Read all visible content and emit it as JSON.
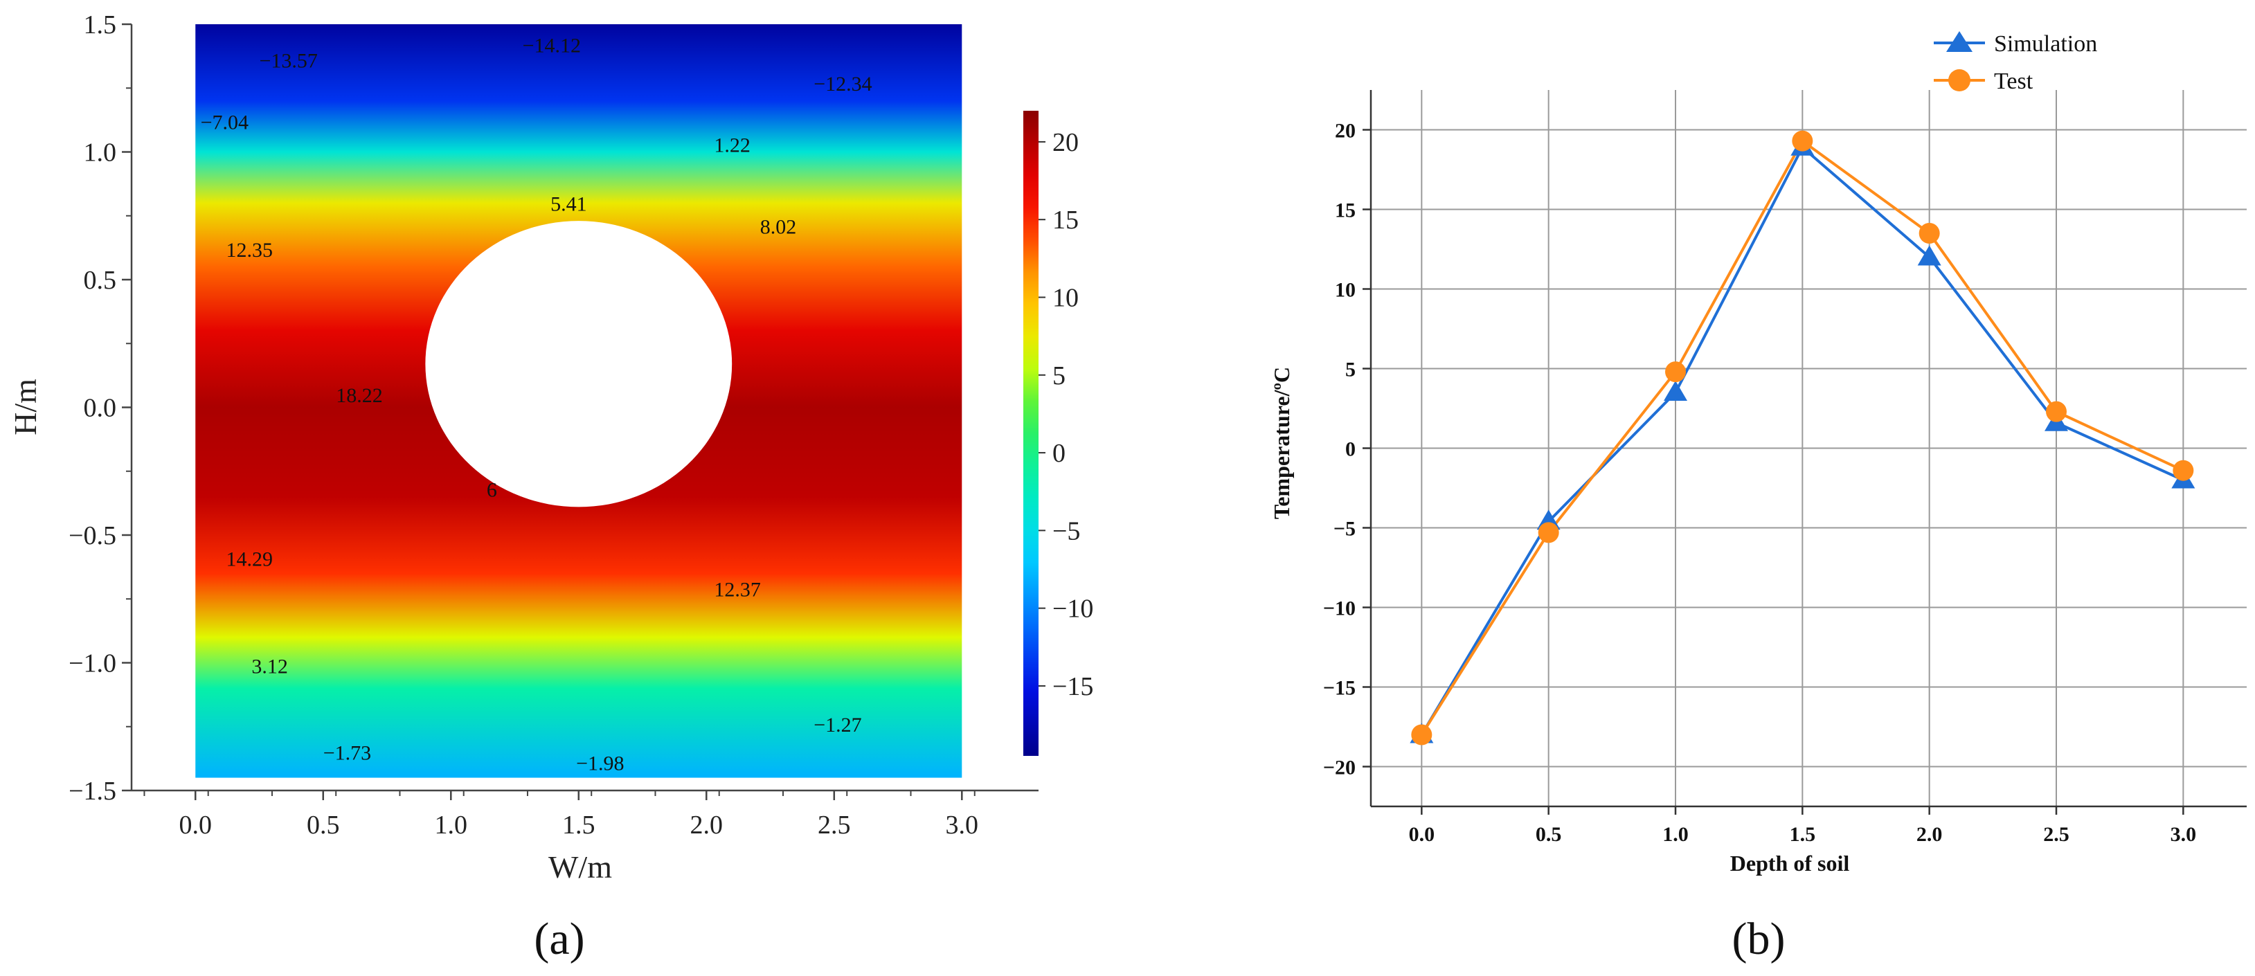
{
  "chart_data": [
    {
      "type": "heatmap",
      "panel_label": "(a)",
      "xlabel": "W/m",
      "ylabel": "H/m",
      "xlim": [
        -0.25,
        3.3
      ],
      "ylim": [
        -1.5,
        1.5
      ],
      "field_extent": {
        "x": [
          0.0,
          3.0
        ],
        "y": [
          -1.45,
          1.5
        ]
      },
      "x_ticks": [
        "0.0",
        "0.5",
        "1.0",
        "1.5",
        "2.0",
        "2.5",
        "3.0"
      ],
      "x_tick_values": [
        0,
        0.5,
        1.0,
        1.5,
        2.0,
        2.5,
        3.0
      ],
      "y_ticks": [
        "1.5",
        "1.0",
        "0.5",
        "0.0",
        "−0.5",
        "−1.0",
        "−1.5"
      ],
      "y_tick_values": [
        1.5,
        1.0,
        0.5,
        0.0,
        -0.5,
        -1.0,
        -1.5
      ],
      "colorbar": {
        "range": [
          -19.5,
          22
        ],
        "ticks": [
          "20",
          "15",
          "10",
          "5",
          "0",
          "−5",
          "−10",
          "−15"
        ],
        "tick_values": [
          20,
          15,
          10,
          5,
          0,
          -5,
          -10,
          -15
        ]
      },
      "hole": {
        "cx": 1.5,
        "cy": 0.17,
        "rx": 0.6,
        "ry": 0.56
      },
      "temperature_profile": {
        "y": [
          1.5,
          1.2,
          1.0,
          0.8,
          0.55,
          0.3,
          0.0,
          -0.35,
          -0.65,
          -0.9,
          -1.1,
          -1.45
        ],
        "t": [
          -18.5,
          -13.5,
          -4.0,
          7.5,
          13.0,
          17.5,
          20.5,
          19.5,
          14.5,
          6.5,
          -1.5,
          -8.0
        ]
      },
      "colormap": [
        {
          "t": -19.5,
          "color": "#00008b"
        },
        {
          "t": -15.0,
          "color": "#0010e8"
        },
        {
          "t": -10.5,
          "color": "#007cff"
        },
        {
          "t": -6.5,
          "color": "#00d4ff"
        },
        {
          "t": -2.0,
          "color": "#00f0b4"
        },
        {
          "t": 2.5,
          "color": "#3af04a"
        },
        {
          "t": 6.0,
          "color": "#d8ff00"
        },
        {
          "t": 9.0,
          "color": "#ffd200"
        },
        {
          "t": 12.0,
          "color": "#ff8a00"
        },
        {
          "t": 15.0,
          "color": "#ff1e00"
        },
        {
          "t": 18.0,
          "color": "#e00000"
        },
        {
          "t": 22.0,
          "color": "#8b0000"
        }
      ],
      "contour_labels": [
        {
          "text": "−13.57",
          "x": 0.25,
          "y": 1.33
        },
        {
          "text": "−14.12",
          "x": 1.28,
          "y": 1.39
        },
        {
          "text": "−12.34",
          "x": 2.42,
          "y": 1.24
        },
        {
          "text": "−7.04",
          "x": 0.02,
          "y": 1.09
        },
        {
          "text": "1.22",
          "x": 2.03,
          "y": 1.0
        },
        {
          "text": "5.41",
          "x": 1.39,
          "y": 0.77
        },
        {
          "text": "8.02",
          "x": 2.21,
          "y": 0.68
        },
        {
          "text": "12.35",
          "x": 0.12,
          "y": 0.59
        },
        {
          "text": "18.22",
          "x": 0.55,
          "y": 0.02
        },
        {
          "text": "6",
          "x": 1.14,
          "y": -0.35
        },
        {
          "text": "14.29",
          "x": 0.12,
          "y": -0.62
        },
        {
          "text": "12.37",
          "x": 2.03,
          "y": -0.74
        },
        {
          "text": "3.12",
          "x": 0.22,
          "y": -1.04
        },
        {
          "text": "−1.27",
          "x": 2.42,
          "y": -1.27
        },
        {
          "text": "−1.73",
          "x": 0.5,
          "y": -1.38
        },
        {
          "text": "−1.98",
          "x": 1.49,
          "y": -1.42
        }
      ]
    },
    {
      "type": "line",
      "panel_label": "(b)",
      "xlabel": "Depth of soil",
      "ylabel": "Temperature/ºC",
      "xlim": [
        -0.2,
        3.25
      ],
      "ylim": [
        -22.5,
        22.5
      ],
      "x_ticks": [
        "0.0",
        "0.5",
        "1.0",
        "1.5",
        "2.0",
        "2.5",
        "3.0"
      ],
      "x_tick_values": [
        0,
        0.5,
        1.0,
        1.5,
        2.0,
        2.5,
        3.0
      ],
      "y_ticks": [
        "20",
        "15",
        "10",
        "5",
        "0",
        "−5",
        "−10",
        "−15",
        "−20"
      ],
      "y_tick_values": [
        20,
        15,
        10,
        5,
        0,
        -5,
        -10,
        -15,
        -20
      ],
      "grid": true,
      "legend_position": "top-right",
      "x": [
        0.0,
        0.5,
        1.0,
        1.5,
        2.0,
        2.5,
        3.0
      ],
      "series": [
        {
          "name": "Simulation",
          "marker": "triangle",
          "color": "#1f6fd6",
          "values": [
            -18.0,
            -4.6,
            3.5,
            18.9,
            12.0,
            1.6,
            -2.0
          ]
        },
        {
          "name": "Test",
          "marker": "circle",
          "color": "#ff8c1a",
          "values": [
            -18.0,
            -5.3,
            4.8,
            19.3,
            13.5,
            2.3,
            -1.4
          ]
        }
      ]
    }
  ]
}
